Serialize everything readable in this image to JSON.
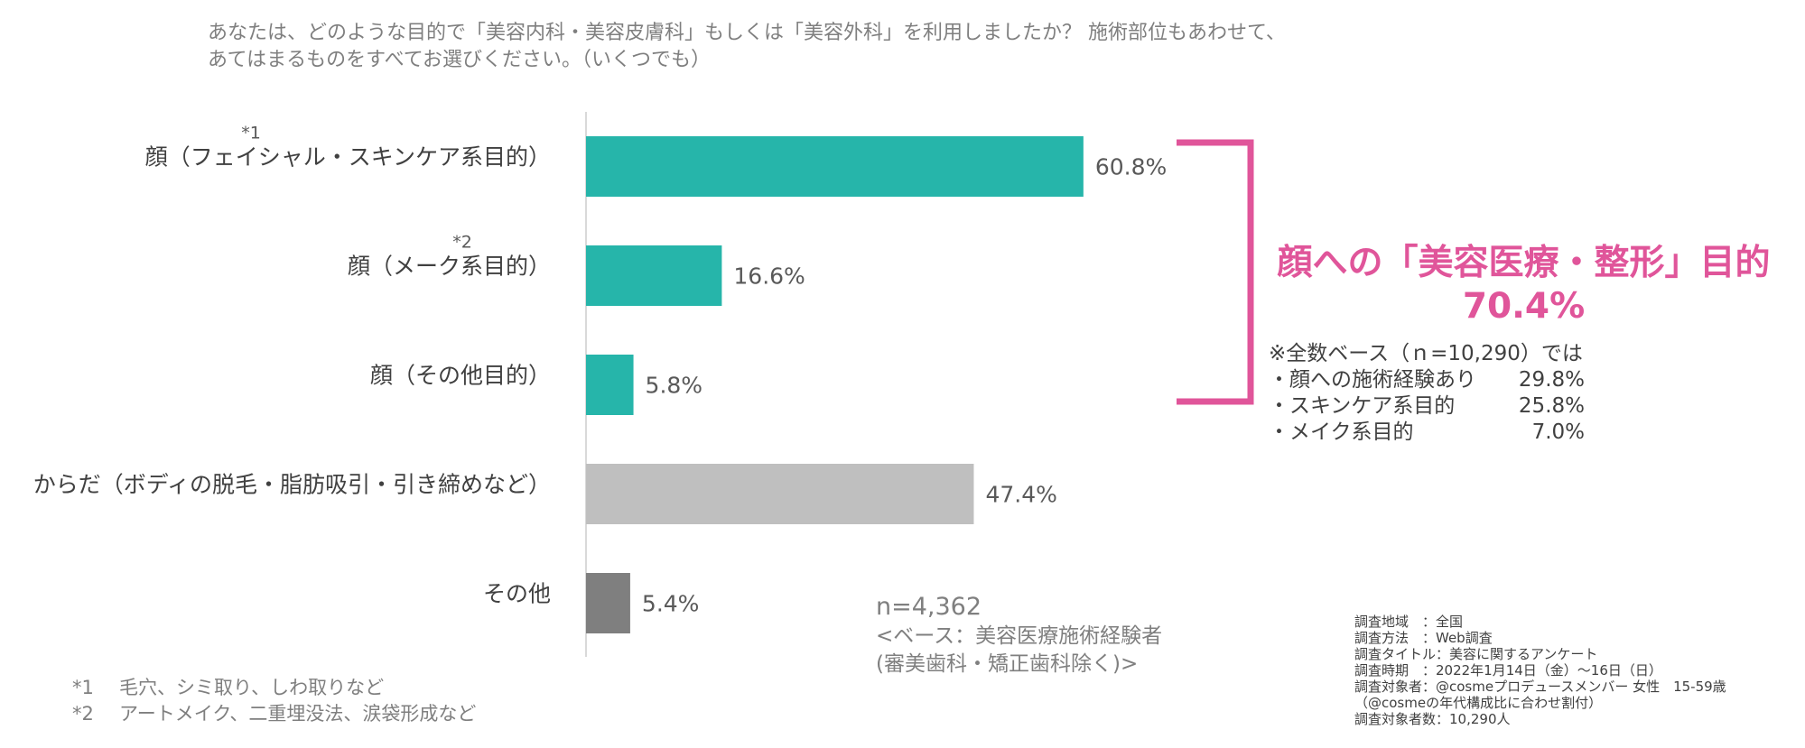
{
  "question": {
    "line1": "あなたは、どのような目的で「美容内科・美容皮膚科」もしくは「美容外科」を利用しましたか？ 施術部位もあわせて、",
    "line2": "あてはまるものをすべてお選びください。（いくつでも）"
  },
  "chart_data": {
    "type": "bar",
    "orientation": "horizontal",
    "categories": [
      "顔（フェイシャル・スキンケア系目的）",
      "顔（メーク系目的）",
      "顔（その他目的）",
      "からだ（ボディの脱毛・脂肪吸引・引き締めなど）",
      "その他"
    ],
    "category_notes": [
      "*1",
      "*2",
      "",
      "",
      ""
    ],
    "values": [
      60.8,
      16.6,
      5.8,
      47.4,
      5.4
    ],
    "value_labels": [
      "60.8%",
      "16.6%",
      "5.8%",
      "47.4%",
      "5.4%"
    ],
    "colors": [
      "#26b5aa",
      "#26b5aa",
      "#26b5aa",
      "#bfbfbf",
      "#7f7f7f"
    ],
    "xlim": [
      0,
      100
    ],
    "grid": false,
    "legend": "none"
  },
  "bracket": {
    "color": "#e0559a",
    "title": "顔への「美容医療・整形」目的",
    "value": "70.4%"
  },
  "base_note": {
    "heading": "※全数ベース（ｎ=10,290）では",
    "rows": [
      {
        "label": "・顔への施術経験あり",
        "value": "29.8%"
      },
      {
        "label": "・スキンケア系目的",
        "value": "25.8%"
      },
      {
        "label": "・メイク系目的",
        "value": "7.0%"
      }
    ]
  },
  "sample": {
    "n": "n=4,362",
    "base_line1": "<ベース：美容医療施術経験者",
    "base_line2": "(審美歯科・矯正歯科除く)>"
  },
  "footnotes": [
    {
      "mark": "*1",
      "text": "毛穴、シミ取り、しわ取りなど"
    },
    {
      "mark": "*2",
      "text": "アートメイク、二重埋没法、涙袋形成など"
    }
  ],
  "survey_info": [
    "調査地域　：全国",
    "調査方法　：Web調査",
    "調査タイトル：美容に関するアンケート",
    "調査時期　：2022年1月14日（金）～16日（日）",
    "調査対象者：@cosmeプロデュースメンバー 女性　15-59歳",
    "（@cosmeの年代構成比に合わせ割付）",
    "調査対象者数：10,290人"
  ]
}
